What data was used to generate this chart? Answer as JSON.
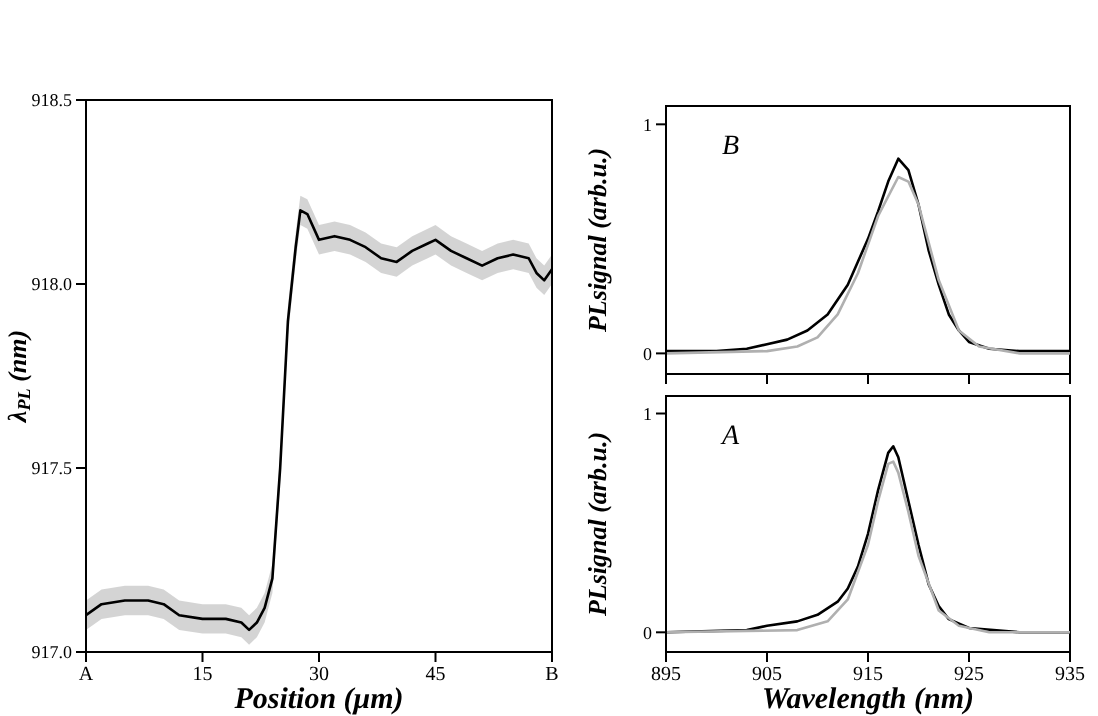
{
  "chart_data": [
    {
      "type": "line",
      "xlabel": "Position (μm)",
      "ylabel": "λ$_{PL}$ (nm)",
      "xlim": [
        0,
        60
      ],
      "xticks": [
        {
          "value": 0,
          "label": "A"
        },
        15,
        30,
        45,
        {
          "value": 60,
          "label": "B"
        }
      ],
      "ylim": [
        917.0,
        918.5
      ],
      "yticks": [
        {
          "value": 917.0,
          "label": "917.0"
        },
        917.5,
        {
          "value": 918.0,
          "label": "918.0"
        },
        918.5
      ],
      "series": [
        {
          "color": "#000000",
          "x": [
            0,
            2,
            5,
            8,
            10,
            12,
            15,
            18,
            20,
            21,
            22,
            23,
            24,
            25,
            26,
            27,
            27.6,
            28.5,
            30,
            32,
            34,
            36,
            38,
            40,
            42,
            44,
            45,
            47,
            49,
            51,
            53,
            55,
            57,
            58,
            59,
            60
          ],
          "values": [
            917.1,
            917.13,
            917.14,
            917.14,
            917.13,
            917.1,
            917.09,
            917.09,
            917.08,
            917.06,
            917.08,
            917.12,
            917.2,
            917.5,
            917.9,
            918.1,
            918.2,
            918.19,
            918.12,
            918.13,
            918.12,
            918.1,
            918.07,
            918.06,
            918.09,
            918.11,
            918.12,
            918.09,
            918.07,
            918.05,
            918.07,
            918.08,
            918.07,
            918.03,
            918.01,
            918.04
          ],
          "lower": [
            917.06,
            917.09,
            917.1,
            917.1,
            917.09,
            917.06,
            917.05,
            917.05,
            917.04,
            917.02,
            917.04,
            917.08,
            917.16,
            917.46,
            917.86,
            918.06,
            918.16,
            918.15,
            918.08,
            918.09,
            918.08,
            918.06,
            918.03,
            918.02,
            918.05,
            918.07,
            918.08,
            918.05,
            918.03,
            918.01,
            918.03,
            918.04,
            918.03,
            917.99,
            917.97,
            918.0
          ],
          "upper": [
            917.14,
            917.17,
            917.18,
            917.18,
            917.17,
            917.14,
            917.13,
            917.13,
            917.12,
            917.1,
            917.12,
            917.16,
            917.24,
            917.54,
            917.94,
            918.14,
            918.24,
            918.23,
            918.16,
            918.17,
            918.16,
            918.14,
            918.11,
            918.1,
            918.13,
            918.15,
            918.16,
            918.13,
            918.11,
            918.09,
            918.11,
            918.12,
            918.11,
            918.07,
            918.05,
            918.08
          ]
        }
      ]
    },
    {
      "type": "line",
      "ylabel": "PLsignal (arb.u.)",
      "annotations": [
        "B"
      ],
      "tick_labels": "y",
      "xlim": [
        895,
        935
      ],
      "xticks": [
        895,
        905,
        915,
        925,
        935
      ],
      "ylim": [
        -0.09,
        1.08
      ],
      "yticks": [
        0,
        1
      ],
      "series": [
        {
          "color": "#000000",
          "x": [
            895,
            900,
            903,
            905,
            907,
            909,
            911,
            913,
            914,
            915,
            916,
            917,
            918,
            919,
            920,
            921,
            922,
            923,
            924,
            925,
            927,
            930,
            935
          ],
          "values": [
            0.01,
            0.01,
            0.02,
            0.04,
            0.06,
            0.1,
            0.17,
            0.3,
            0.4,
            0.5,
            0.62,
            0.75,
            0.85,
            0.8,
            0.65,
            0.45,
            0.3,
            0.17,
            0.1,
            0.05,
            0.02,
            0.01,
            0.01
          ]
        },
        {
          "color": "#b0b0b0",
          "x": [
            895,
            905,
            908,
            910,
            912,
            914,
            916,
            918,
            919,
            920,
            922,
            924,
            926,
            930,
            935
          ],
          "values": [
            0,
            0.01,
            0.03,
            0.07,
            0.17,
            0.35,
            0.6,
            0.77,
            0.75,
            0.65,
            0.32,
            0.1,
            0.03,
            0,
            0
          ]
        }
      ]
    },
    {
      "type": "line",
      "xlabel": "Wavelength (nm)",
      "ylabel": "PLsignal (arb.u.)",
      "annotations": [
        "A"
      ],
      "xlim": [
        895,
        935
      ],
      "xticks": [
        895,
        905,
        915,
        925,
        935
      ],
      "ylim": [
        -0.09,
        1.08
      ],
      "yticks": [
        0,
        1
      ],
      "series": [
        {
          "color": "#000000",
          "x": [
            895,
            903,
            905,
            908,
            910,
            912,
            913,
            914,
            915,
            916,
            917,
            917.5,
            918,
            919,
            920,
            921,
            922,
            923,
            925,
            930,
            935
          ],
          "values": [
            0,
            0.01,
            0.03,
            0.05,
            0.08,
            0.14,
            0.2,
            0.3,
            0.45,
            0.65,
            0.82,
            0.85,
            0.8,
            0.6,
            0.4,
            0.22,
            0.12,
            0.06,
            0.02,
            0,
            0
          ]
        },
        {
          "color": "#b0b0b0",
          "x": [
            895,
            908,
            911,
            913,
            915,
            916,
            917,
            917.5,
            918,
            919,
            920,
            922,
            924,
            927,
            935
          ],
          "values": [
            0,
            0.01,
            0.05,
            0.15,
            0.4,
            0.6,
            0.77,
            0.78,
            0.73,
            0.55,
            0.35,
            0.1,
            0.03,
            0,
            0
          ]
        }
      ]
    }
  ]
}
